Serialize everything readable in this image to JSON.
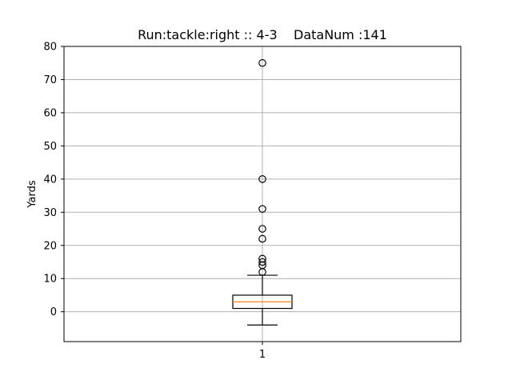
{
  "chart_data": {
    "type": "box",
    "title": "Run:tackle:right :: 4-3    DataNum :141",
    "ylabel": "Yards",
    "xlabel": "",
    "categories": [
      "1"
    ],
    "ylim": [
      -9,
      80
    ],
    "yticks": [
      0,
      10,
      20,
      30,
      40,
      50,
      60,
      70,
      80
    ],
    "grid": true,
    "box": {
      "whisker_low": -4,
      "q1": 1,
      "median": 3,
      "q3": 5,
      "whisker_high": 11,
      "outliers": [
        12,
        14,
        15,
        16,
        22,
        25,
        31,
        40,
        75
      ]
    },
    "colors": {
      "median": "#ff7f0e",
      "box": "#000000",
      "grid": "#b0b0b0"
    }
  }
}
